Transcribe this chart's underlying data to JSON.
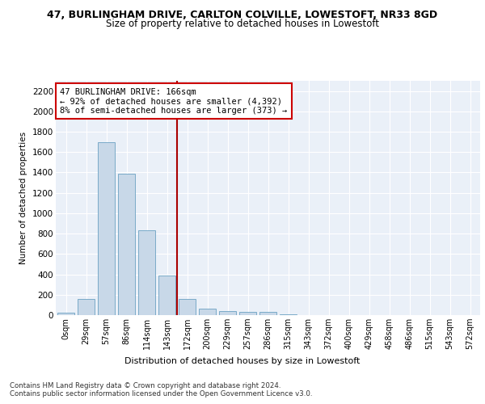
{
  "title_line1": "47, BURLINGHAM DRIVE, CARLTON COLVILLE, LOWESTOFT, NR33 8GD",
  "title_line2": "Size of property relative to detached houses in Lowestoft",
  "xlabel": "Distribution of detached houses by size in Lowestoft",
  "ylabel": "Number of detached properties",
  "bar_labels": [
    "0sqm",
    "29sqm",
    "57sqm",
    "86sqm",
    "114sqm",
    "143sqm",
    "172sqm",
    "200sqm",
    "229sqm",
    "257sqm",
    "286sqm",
    "315sqm",
    "343sqm",
    "372sqm",
    "400sqm",
    "429sqm",
    "458sqm",
    "486sqm",
    "515sqm",
    "543sqm",
    "572sqm"
  ],
  "bar_values": [
    20,
    155,
    1700,
    1390,
    835,
    390,
    160,
    65,
    38,
    28,
    28,
    5,
    0,
    0,
    0,
    0,
    0,
    0,
    0,
    0,
    0
  ],
  "bar_color": "#c8d8e8",
  "bar_edge_color": "#7aaac8",
  "vline_x": 5.5,
  "vline_color": "#aa0000",
  "ylim": [
    0,
    2300
  ],
  "yticks": [
    0,
    200,
    400,
    600,
    800,
    1000,
    1200,
    1400,
    1600,
    1800,
    2000,
    2200
  ],
  "annotation_text": "47 BURLINGHAM DRIVE: 166sqm\n← 92% of detached houses are smaller (4,392)\n8% of semi-detached houses are larger (373) →",
  "annotation_box_color": "#ffffff",
  "annotation_box_edge": "#cc0000",
  "bg_color": "#eaf0f8",
  "footer_text": "Contains HM Land Registry data © Crown copyright and database right 2024.\nContains public sector information licensed under the Open Government Licence v3.0.",
  "grid_color": "#ffffff",
  "title_fontsize": 9,
  "subtitle_fontsize": 8.5,
  "bar_width": 0.85
}
